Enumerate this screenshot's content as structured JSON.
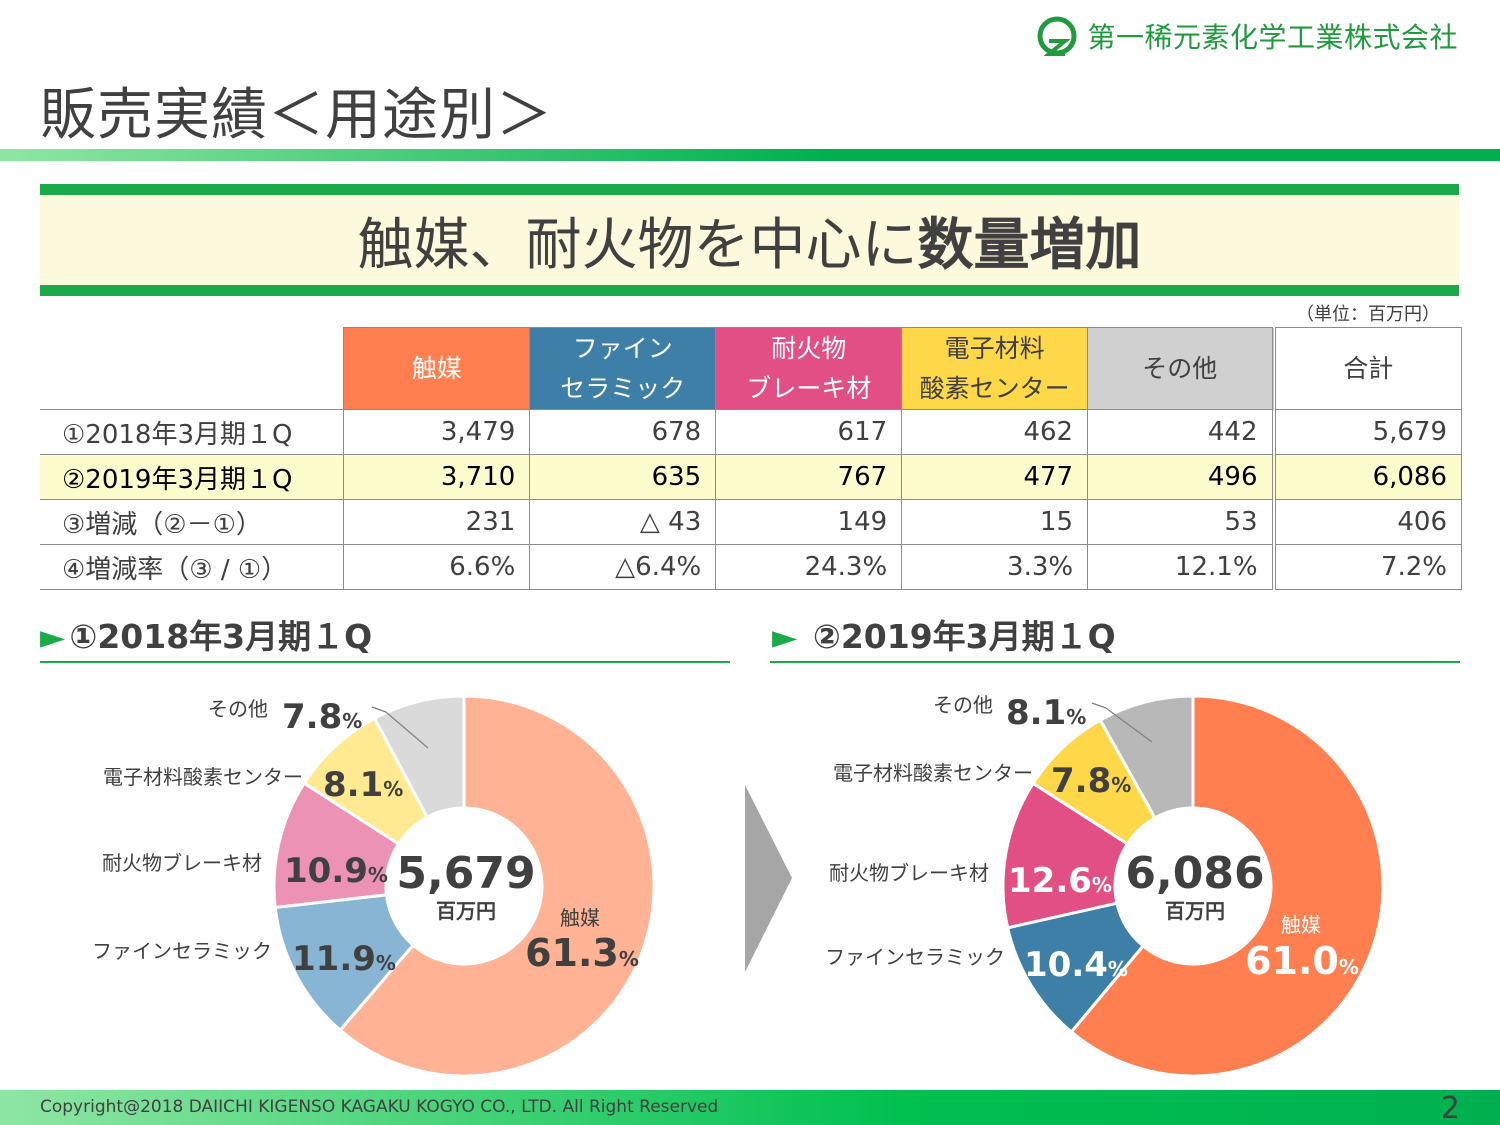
{
  "company": {
    "name": "第一稀元素化学工業株式会社"
  },
  "page": {
    "title": "販売実績＜用途別＞",
    "page_number": "2"
  },
  "banner": {
    "normal": "触媒、耐火物を中心に",
    "bold": "数量増加"
  },
  "unit_note": "（単位：百万円）",
  "table": {
    "headers": [
      {
        "line1": "触媒",
        "line2": ""
      },
      {
        "line1": "ファイン",
        "line2": "セラミック"
      },
      {
        "line1": "耐火物",
        "line2": "ブレーキ材"
      },
      {
        "line1": "電子材料",
        "line2": "酸素センター"
      },
      {
        "line1": "その他",
        "line2": ""
      },
      {
        "line1": "合計",
        "line2": ""
      }
    ],
    "rows": [
      {
        "label": "①2018年3月期１Q",
        "values": [
          "3,479",
          "678",
          "617",
          "462",
          "442",
          "5,679"
        ]
      },
      {
        "label": "②2019年3月期１Q",
        "values": [
          "3,710",
          "635",
          "767",
          "477",
          "496",
          "6,086"
        ]
      },
      {
        "label": "③増減（②－①）",
        "values": [
          "231",
          "△ 43",
          "149",
          "15",
          "53",
          "406"
        ]
      },
      {
        "label": "④増減率（③ / ①）",
        "values": [
          "6.6%",
          "△6.4%",
          "24.3%",
          "3.3%",
          "12.1%",
          "7.2%"
        ]
      }
    ]
  },
  "colors": {
    "accent_green": "#1aaa4a",
    "catalyst": "#ff7f50",
    "fine": "#3e7fa8",
    "refractory": "#e24f84",
    "electronic": "#ffd84a",
    "other": "#d0d0d0"
  },
  "chart_data": [
    {
      "type": "pie",
      "title": "①2018年3月期１Q",
      "center_value": "5,679",
      "center_unit": "百万円",
      "pct_unit": "%",
      "slices": [
        {
          "label": "触媒",
          "value": 61.3,
          "color": "#ffb394"
        },
        {
          "label": "ファインセラミック",
          "value": 11.9,
          "color": "#89b5d4"
        },
        {
          "label": "耐火物ブレーキ材",
          "value": 10.9,
          "color": "#ec92b4"
        },
        {
          "label": "電子材料酸素センター",
          "value": 8.1,
          "color": "#ffe991"
        },
        {
          "label": "その他",
          "value": 7.8,
          "color": "#dadada"
        }
      ]
    },
    {
      "type": "pie",
      "title": "②2019年3月期１Q",
      "center_value": "6,086",
      "center_unit": "百万円",
      "pct_unit": "%",
      "slices": [
        {
          "label": "触媒",
          "value": 61.0,
          "color": "#ff7f50"
        },
        {
          "label": "ファインセラミック",
          "value": 10.4,
          "color": "#3e7fa8"
        },
        {
          "label": "耐火物ブレーキ材",
          "value": 12.6,
          "color": "#e24f84"
        },
        {
          "label": "電子材料酸素センター",
          "value": 7.8,
          "color": "#ffd84a"
        },
        {
          "label": "その他",
          "value": 8.1,
          "color": "#b8b8b8"
        }
      ]
    }
  ],
  "footer": {
    "copyright": "Copyright@2018 DAIICHI KIGENSO KAGAKU KOGYO CO., LTD. All Right  Reserved"
  }
}
